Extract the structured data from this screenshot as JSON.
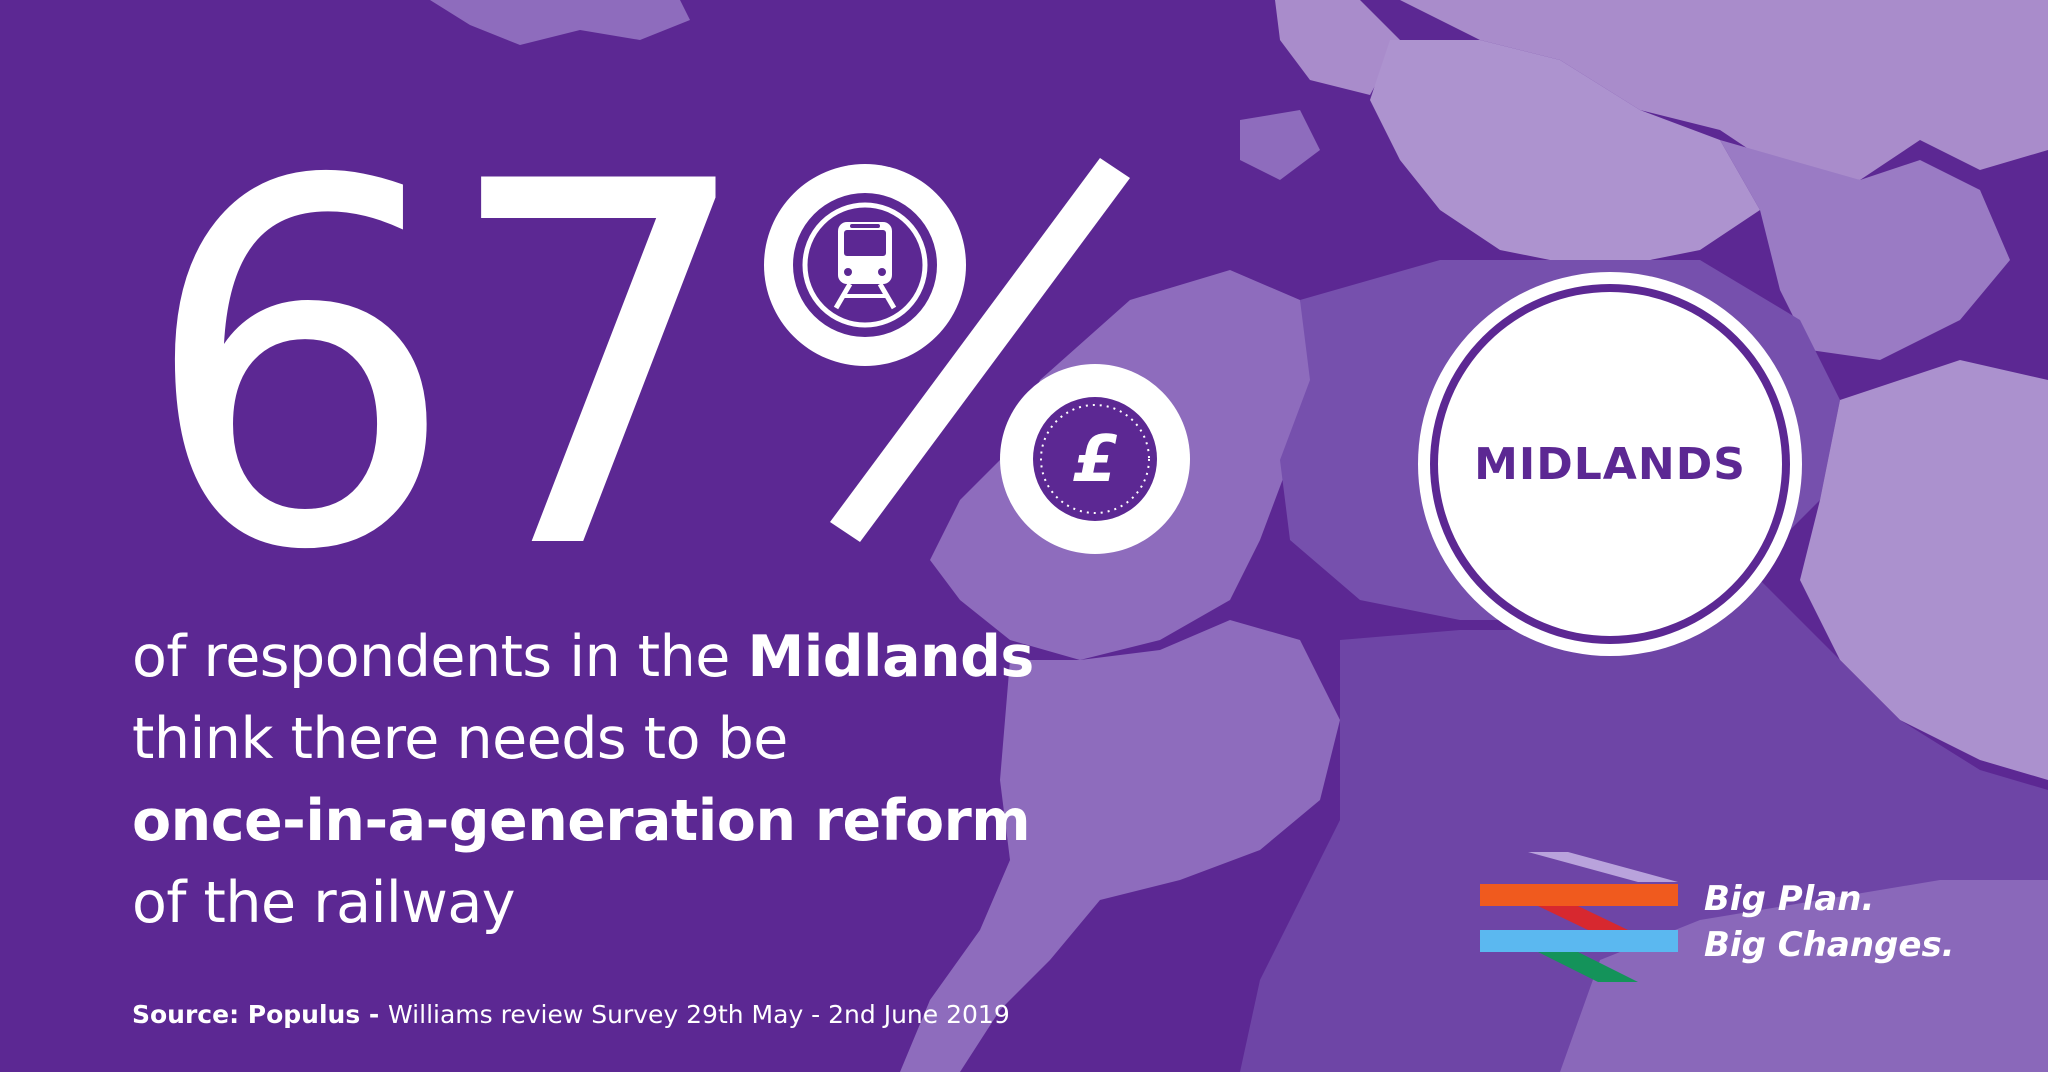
{
  "headline": {
    "number": "67",
    "percent_sign": "%"
  },
  "icons": {
    "train": "train-icon",
    "pound": "pound-coin-icon"
  },
  "badge": {
    "label": "MIDLANDS"
  },
  "statement": {
    "line1_regular": "of respondents in the ",
    "line1_bold": "Midlands",
    "line2": "think there needs to be",
    "line3_bold": "once-in-a-generation reform",
    "line4": "of the railway"
  },
  "source": {
    "label": "Source: Populus - ",
    "text": "Williams review Survey 29th May - 2nd June 2019"
  },
  "brand": {
    "line1": "Big Plan.",
    "line2": "Big Changes.",
    "colors": {
      "background": "#5c2893",
      "map_light": "#a98ccb",
      "map_mid": "#8e6cbd",
      "map_dark": "#7650ad",
      "orange": "#f05a1e",
      "blue": "#5bb8f0",
      "red": "#d7282f",
      "green": "#14935a"
    }
  }
}
